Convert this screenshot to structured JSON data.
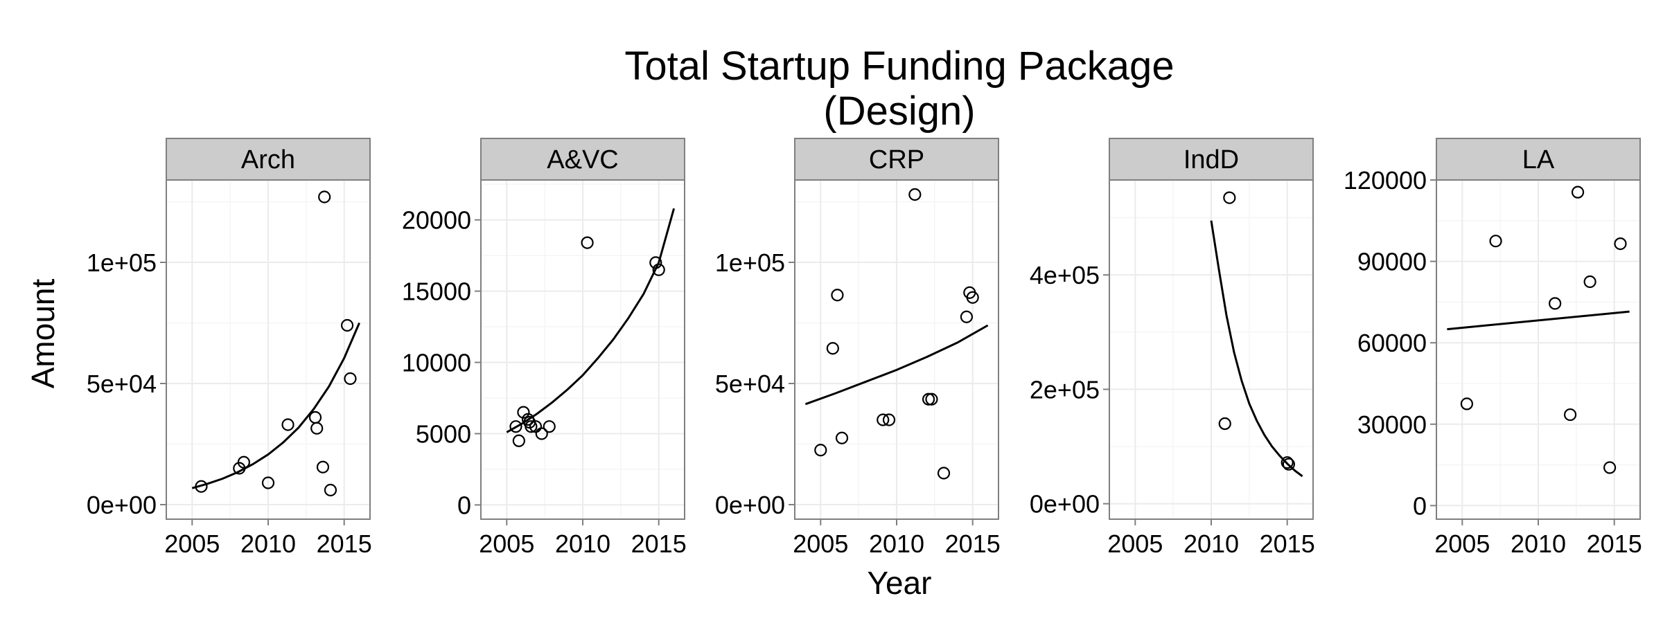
{
  "chart_data": {
    "type": "scatter",
    "title_lines": [
      "Total Startup Funding Package",
      "(Design)"
    ],
    "xlabel": "Year",
    "ylabel": "Amount",
    "xlim": [
      2003.3,
      2016.7
    ],
    "x_ticks": [
      2005,
      2010,
      2015
    ],
    "x_tick_labels": [
      "2005",
      "2010",
      "2015"
    ],
    "colors": {
      "panel_bg": "#ffffff",
      "grid_major": "#ebebeb",
      "grid_minor": "#f5f5f5",
      "strip_bg": "#cccccc",
      "border": "#7f7f7f",
      "point": "#000000",
      "line": "#000000"
    },
    "panels": [
      {
        "name": "Arch",
        "ylim": [
          -6000,
          134000
        ],
        "y_ticks": [
          0,
          50000,
          100000
        ],
        "y_tick_labels": [
          "0e+00",
          "5e+04",
          "1e+05"
        ],
        "points": [
          [
            2005.6,
            7500
          ],
          [
            2008.1,
            15000
          ],
          [
            2008.4,
            17500
          ],
          [
            2010.0,
            9000
          ],
          [
            2011.3,
            33000
          ],
          [
            2013.1,
            36000
          ],
          [
            2013.2,
            31500
          ],
          [
            2013.6,
            15500
          ],
          [
            2013.7,
            127000
          ],
          [
            2014.1,
            6000
          ],
          [
            2015.2,
            74000
          ],
          [
            2015.4,
            52000
          ]
        ],
        "fit": [
          [
            2005.0,
            6800
          ],
          [
            2006.0,
            8600
          ],
          [
            2007.0,
            10700
          ],
          [
            2008.0,
            13400
          ],
          [
            2009.0,
            16700
          ],
          [
            2010.0,
            20700
          ],
          [
            2011.0,
            25700
          ],
          [
            2012.0,
            31800
          ],
          [
            2013.0,
            39500
          ],
          [
            2014.0,
            48800
          ],
          [
            2015.0,
            60500
          ],
          [
            2016.0,
            75000
          ]
        ]
      },
      {
        "name": "A&VC",
        "ylim": [
          -1000,
          22800
        ],
        "y_ticks": [
          0,
          5000,
          10000,
          15000,
          20000
        ],
        "y_tick_labels": [
          "0",
          "5000",
          "10000",
          "15000",
          "20000"
        ],
        "points": [
          [
            2005.6,
            5500
          ],
          [
            2005.8,
            4500
          ],
          [
            2006.1,
            6500
          ],
          [
            2006.4,
            6000
          ],
          [
            2006.5,
            5800
          ],
          [
            2006.6,
            5500
          ],
          [
            2006.9,
            5500
          ],
          [
            2007.3,
            5000
          ],
          [
            2007.8,
            5500
          ],
          [
            2010.3,
            18400
          ],
          [
            2014.8,
            17000
          ],
          [
            2015.0,
            16500
          ]
        ],
        "fit": [
          [
            2005.0,
            5100
          ],
          [
            2006.0,
            5700
          ],
          [
            2007.0,
            6400
          ],
          [
            2008.0,
            7200
          ],
          [
            2009.0,
            8100
          ],
          [
            2010.0,
            9100
          ],
          [
            2011.0,
            10300
          ],
          [
            2012.0,
            11600
          ],
          [
            2013.0,
            13100
          ],
          [
            2014.0,
            14800
          ],
          [
            2015.0,
            17000
          ],
          [
            2016.0,
            20800
          ]
        ]
      },
      {
        "name": "CRP",
        "ylim": [
          -6000,
          134000
        ],
        "y_ticks": [
          0,
          50000,
          100000
        ],
        "y_tick_labels": [
          "0e+00",
          "5e+04",
          "1e+05"
        ],
        "points": [
          [
            2005.0,
            22500
          ],
          [
            2005.8,
            64500
          ],
          [
            2006.1,
            86500
          ],
          [
            2006.4,
            27500
          ],
          [
            2009.1,
            35000
          ],
          [
            2009.5,
            35000
          ],
          [
            2011.2,
            128000
          ],
          [
            2012.1,
            43500
          ],
          [
            2012.3,
            43500
          ],
          [
            2013.1,
            13000
          ],
          [
            2014.6,
            77500
          ],
          [
            2014.8,
            87500
          ],
          [
            2015.0,
            85500
          ]
        ],
        "fit": [
          [
            2004.0,
            41500
          ],
          [
            2006.0,
            46000
          ],
          [
            2008.0,
            50800
          ],
          [
            2010.0,
            55600
          ],
          [
            2012.0,
            61000
          ],
          [
            2014.0,
            66900
          ],
          [
            2016.0,
            74000
          ]
        ]
      },
      {
        "name": "IndD",
        "ylim": [
          -27000,
          566000
        ],
        "y_ticks": [
          0,
          200000,
          400000
        ],
        "y_tick_labels": [
          "0e+00",
          "2e+05",
          "4e+05"
        ],
        "points": [
          [
            2010.9,
            140000
          ],
          [
            2011.2,
            535000
          ],
          [
            2015.0,
            72000
          ],
          [
            2015.1,
            69000
          ]
        ],
        "fit": [
          [
            2010.0,
            495000
          ],
          [
            2010.5,
            410000
          ],
          [
            2011.0,
            330000
          ],
          [
            2011.5,
            265000
          ],
          [
            2012.0,
            215000
          ],
          [
            2012.5,
            175000
          ],
          [
            2013.0,
            145000
          ],
          [
            2013.5,
            120000
          ],
          [
            2014.0,
            100000
          ],
          [
            2014.5,
            84000
          ],
          [
            2015.0,
            70000
          ],
          [
            2015.5,
            58000
          ],
          [
            2016.0,
            48000
          ]
        ]
      },
      {
        "name": "LA",
        "ylim": [
          -5000,
          120000
        ],
        "y_ticks": [
          0,
          30000,
          60000,
          90000,
          120000
        ],
        "y_tick_labels": [
          "0",
          "30000",
          "60000",
          "90000",
          "120000"
        ],
        "points": [
          [
            2005.3,
            37500
          ],
          [
            2007.2,
            97500
          ],
          [
            2011.1,
            74500
          ],
          [
            2012.1,
            33500
          ],
          [
            2012.6,
            115500
          ],
          [
            2013.4,
            82500
          ],
          [
            2014.7,
            14000
          ],
          [
            2015.4,
            96500
          ]
        ],
        "fit": [
          [
            2004.0,
            65000
          ],
          [
            2016.0,
            71500
          ]
        ]
      }
    ]
  }
}
